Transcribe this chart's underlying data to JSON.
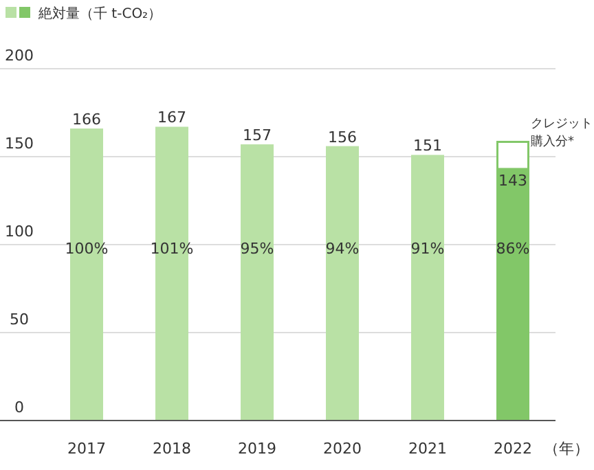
{
  "chart_data": {
    "type": "bar",
    "stacked": true,
    "categories": [
      "2017",
      "2018",
      "2019",
      "2020",
      "2021",
      "2022"
    ],
    "series": [
      {
        "name": "絶対量（千 t-CO₂）",
        "colors": [
          "#b9e1a5",
          "#b9e1a5",
          "#b9e1a5",
          "#b9e1a5",
          "#b9e1a5",
          "#82c768"
        ],
        "values": [
          166,
          167,
          157,
          156,
          151,
          143
        ],
        "value_labels": [
          "166",
          "167",
          "157",
          "156",
          "151",
          "143"
        ]
      },
      {
        "name": "クレジット購入分*",
        "color": "#ffffff",
        "values": [
          null,
          null,
          null,
          null,
          null,
          16
        ]
      }
    ],
    "xlabel": "（年）",
    "ylim": [
      0,
      200
    ],
    "yticks": [
      0,
      50,
      100,
      150,
      200
    ],
    "grid": "y",
    "legend": "top left",
    "annotations": [
      "100%",
      "101%",
      "95%",
      "94%",
      "91%",
      "86%"
    ]
  }
}
